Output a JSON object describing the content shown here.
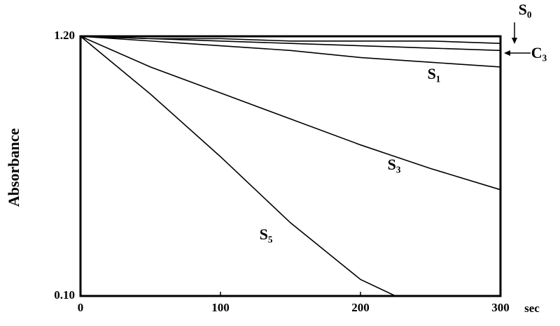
{
  "chart_data": {
    "type": "line",
    "x_label": "sec",
    "y_label": "Absorbance",
    "x": [
      0,
      50,
      100,
      150,
      200,
      225,
      250,
      300
    ],
    "series": [
      {
        "name": "S₀",
        "color": "#000000",
        "values": [
          1.2,
          1.19,
          1.19,
          1.18,
          1.18,
          1.18,
          1.18,
          1.17
        ]
      },
      {
        "name": "C₃",
        "color": "#000000",
        "values": [
          1.2,
          1.19,
          1.18,
          1.17,
          1.16,
          1.155,
          1.15,
          1.14
        ]
      },
      {
        "name": "S₁",
        "color": "#000000",
        "values": [
          1.2,
          1.18,
          1.16,
          1.14,
          1.11,
          1.1,
          1.09,
          1.07
        ]
      },
      {
        "name": "S₃",
        "color": "#000000",
        "values": [
          1.2,
          1.07,
          0.96,
          0.85,
          0.74,
          0.69,
          0.64,
          0.55
        ]
      },
      {
        "name": "S₅",
        "color": "#000000",
        "values": [
          1.2,
          0.955,
          0.69,
          0.41,
          0.17,
          0.1,
          null,
          null
        ]
      }
    ],
    "xlim": [
      0,
      300
    ],
    "xticks": [
      0,
      100,
      200,
      300
    ],
    "ylim": [
      0.1,
      1.2
    ],
    "yticks": [
      {
        "value": 0.1,
        "label": "0.10"
      },
      {
        "value": 1.2,
        "label": "1.20"
      }
    ],
    "grid": false
  }
}
